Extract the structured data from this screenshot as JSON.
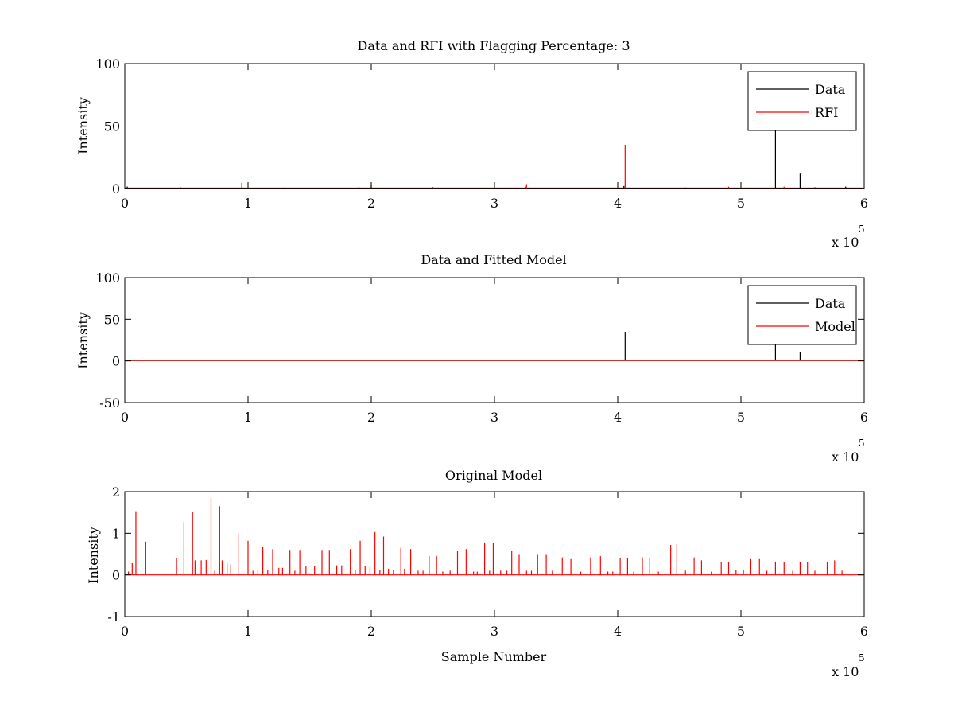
{
  "figure": {
    "background": "#ffffff"
  },
  "chart_data": [
    {
      "type": "line",
      "title": "Data and RFI with Flagging Percentage: 3",
      "xlabel": "",
      "ylabel": "Intensity",
      "xlim": [
        0,
        6
      ],
      "ylim": [
        0,
        100
      ],
      "x_ticks": [
        0,
        1,
        2,
        3,
        4,
        5,
        6
      ],
      "y_ticks": [
        0,
        50,
        100
      ],
      "x_multiplier": "x 10",
      "x_multiplier_exponent": "5",
      "grid": false,
      "legend": {
        "location": "top-right"
      },
      "series": [
        {
          "name": "Data",
          "color": "#000000",
          "baseline": 0.3,
          "spikes": [
            [
              0.02,
              1.6
            ],
            [
              0.45,
              1.2
            ],
            [
              0.95,
              4.5
            ],
            [
              1.3,
              1.0
            ],
            [
              1.9,
              1.2
            ],
            [
              2.0,
              3.0
            ],
            [
              2.5,
              1.0
            ],
            [
              3.25,
              1.5
            ],
            [
              4.05,
              2.0
            ],
            [
              4.55,
              0.8
            ],
            [
              5.28,
              70
            ],
            [
              5.48,
              12
            ],
            [
              5.6,
              1.0
            ],
            [
              5.85,
              1.6
            ]
          ]
        },
        {
          "name": "RFI",
          "color": "#ff0000",
          "baseline": 0,
          "spikes": [
            [
              3.26,
              3.5
            ],
            [
              4.06,
              35
            ],
            [
              4.9,
              1.5
            ],
            [
              5.35,
              1.5
            ]
          ]
        }
      ]
    },
    {
      "type": "line",
      "title": "Data and Fitted Model",
      "xlabel": "",
      "ylabel": "Intensity",
      "xlim": [
        0,
        6
      ],
      "ylim": [
        -50,
        100
      ],
      "x_ticks": [
        0,
        1,
        2,
        3,
        4,
        5,
        6
      ],
      "y_ticks": [
        -50,
        0,
        50,
        100
      ],
      "x_multiplier": "x 10",
      "x_multiplier_exponent": "5",
      "grid": false,
      "legend": {
        "location": "top-right"
      },
      "series": [
        {
          "name": "Data",
          "color": "#000000",
          "baseline": 0.5,
          "spikes": [
            [
              0.02,
              1.6
            ],
            [
              0.08,
              1.0
            ],
            [
              3.25,
              1.5
            ],
            [
              4.06,
              35
            ],
            [
              5.28,
              28
            ],
            [
              5.48,
              11
            ],
            [
              5.95,
              1.2
            ]
          ]
        },
        {
          "name": "Model",
          "color": "#ff0000",
          "baseline": 0.6,
          "spikes": []
        }
      ]
    },
    {
      "type": "line",
      "title": "Original Model",
      "xlabel": "Sample Number",
      "ylabel": "Intensity",
      "xlim": [
        0,
        6
      ],
      "ylim": [
        -1,
        2
      ],
      "x_ticks": [
        0,
        1,
        2,
        3,
        4,
        5,
        6
      ],
      "y_ticks": [
        -1,
        0,
        1,
        2
      ],
      "x_multiplier": "x 10",
      "x_multiplier_exponent": "5",
      "grid": false,
      "legend": null,
      "series": [
        {
          "name": "",
          "color": "#ff0000",
          "baseline": 0,
          "spikes": [
            [
              0.03,
              0.08
            ],
            [
              0.06,
              0.28
            ],
            [
              0.09,
              1.53
            ],
            [
              0.17,
              0.8
            ],
            [
              0.42,
              0.4
            ],
            [
              0.48,
              1.27
            ],
            [
              0.55,
              1.51
            ],
            [
              0.57,
              0.35
            ],
            [
              0.62,
              0.35
            ],
            [
              0.66,
              0.36
            ],
            [
              0.7,
              1.85
            ],
            [
              0.73,
              0.1
            ],
            [
              0.77,
              1.65
            ],
            [
              0.79,
              0.35
            ],
            [
              0.83,
              0.27
            ],
            [
              0.86,
              0.25
            ],
            [
              0.92,
              1.0
            ],
            [
              1.0,
              0.82
            ],
            [
              1.04,
              0.1
            ],
            [
              1.08,
              0.12
            ],
            [
              1.12,
              0.68
            ],
            [
              1.16,
              0.12
            ],
            [
              1.2,
              0.62
            ],
            [
              1.25,
              0.17
            ],
            [
              1.28,
              0.17
            ],
            [
              1.34,
              0.6
            ],
            [
              1.38,
              0.1
            ],
            [
              1.42,
              0.6
            ],
            [
              1.47,
              0.22
            ],
            [
              1.54,
              0.22
            ],
            [
              1.6,
              0.6
            ],
            [
              1.66,
              0.6
            ],
            [
              1.72,
              0.23
            ],
            [
              1.76,
              0.23
            ],
            [
              1.83,
              0.62
            ],
            [
              1.87,
              0.12
            ],
            [
              1.91,
              0.82
            ],
            [
              1.95,
              0.22
            ],
            [
              1.99,
              0.2
            ],
            [
              2.03,
              1.03
            ],
            [
              2.07,
              0.12
            ],
            [
              2.1,
              0.92
            ],
            [
              2.14,
              0.15
            ],
            [
              2.18,
              0.12
            ],
            [
              2.24,
              0.65
            ],
            [
              2.27,
              0.15
            ],
            [
              2.32,
              0.62
            ],
            [
              2.38,
              0.1
            ],
            [
              2.42,
              0.1
            ],
            [
              2.47,
              0.45
            ],
            [
              2.53,
              0.45
            ],
            [
              2.58,
              0.08
            ],
            [
              2.64,
              0.1
            ],
            [
              2.7,
              0.58
            ],
            [
              2.77,
              0.62
            ],
            [
              2.83,
              0.08
            ],
            [
              2.86,
              0.08
            ],
            [
              2.92,
              0.78
            ],
            [
              2.96,
              0.1
            ],
            [
              2.99,
              0.76
            ],
            [
              3.05,
              0.1
            ],
            [
              3.1,
              0.1
            ],
            [
              3.14,
              0.58
            ],
            [
              3.2,
              0.5
            ],
            [
              3.26,
              0.1
            ],
            [
              3.3,
              0.1
            ],
            [
              3.35,
              0.5
            ],
            [
              3.42,
              0.5
            ],
            [
              3.47,
              0.1
            ],
            [
              3.55,
              0.42
            ],
            [
              3.62,
              0.38
            ],
            [
              3.7,
              0.08
            ],
            [
              3.78,
              0.42
            ],
            [
              3.86,
              0.45
            ],
            [
              3.92,
              0.08
            ],
            [
              3.96,
              0.08
            ],
            [
              4.02,
              0.4
            ],
            [
              4.08,
              0.4
            ],
            [
              4.13,
              0.08
            ],
            [
              4.2,
              0.42
            ],
            [
              4.26,
              0.42
            ],
            [
              4.33,
              0.08
            ],
            [
              4.43,
              0.72
            ],
            [
              4.48,
              0.74
            ],
            [
              4.55,
              0.1
            ],
            [
              4.62,
              0.42
            ],
            [
              4.68,
              0.35
            ],
            [
              4.76,
              0.08
            ],
            [
              4.84,
              0.3
            ],
            [
              4.9,
              0.32
            ],
            [
              4.96,
              0.12
            ],
            [
              5.02,
              0.12
            ],
            [
              5.08,
              0.38
            ],
            [
              5.15,
              0.38
            ],
            [
              5.21,
              0.1
            ],
            [
              5.28,
              0.32
            ],
            [
              5.35,
              0.32
            ],
            [
              5.42,
              0.1
            ],
            [
              5.48,
              0.3
            ],
            [
              5.54,
              0.3
            ],
            [
              5.6,
              0.1
            ],
            [
              5.7,
              0.3
            ],
            [
              5.76,
              0.35
            ],
            [
              5.82,
              0.1
            ]
          ]
        }
      ]
    }
  ]
}
